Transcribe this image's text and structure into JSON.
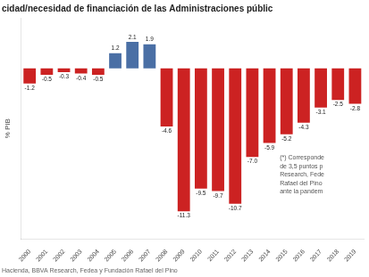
{
  "chart_data": {
    "type": "bar",
    "title": "cidad/necesidad de financiación de las Administraciones públic",
    "ylabel": "% PIB",
    "categories": [
      "2000",
      "2001",
      "2002",
      "2003",
      "2004",
      "2005",
      "2006",
      "2007",
      "2008",
      "2009",
      "2010",
      "2011",
      "2012",
      "2013",
      "2014",
      "2015",
      "2016",
      "2017",
      "2018",
      "2019"
    ],
    "values": [
      -1.2,
      -0.5,
      -0.3,
      -0.4,
      -0.5,
      1.2,
      2.1,
      1.9,
      -4.6,
      -11.3,
      -9.5,
      -9.7,
      -10.7,
      -7.0,
      -5.9,
      -5.2,
      -4.3,
      -3.1,
      -2.5,
      -2.8
    ],
    "value_labels": [
      "-1.2",
      "-0.5",
      "-0.3",
      "-0.4",
      "-0.5",
      "1.2",
      "2.1",
      "1.9",
      "-4.6",
      "-11.3",
      "-9.5",
      "-9.7",
      "-10.7",
      "-7.0",
      "-5.9",
      "-5.2",
      "-4.3",
      "-3.1",
      "-2.5",
      "-2.8"
    ],
    "colors": [
      "#cc2222",
      "#cc2222",
      "#cc2222",
      "#cc2222",
      "#cc2222",
      "#4a6fa5",
      "#4a6fa5",
      "#4a6fa5",
      "#cc2222",
      "#cc2222",
      "#cc2222",
      "#cc2222",
      "#cc2222",
      "#cc2222",
      "#cc2222",
      "#cc2222",
      "#cc2222",
      "#cc2222",
      "#cc2222",
      "#cc2222"
    ],
    "ylim": [
      -13.5,
      4.0
    ],
    "data_labels": true,
    "tick_labels": "x",
    "grid": false,
    "annotation": "(*) Corresponde\nde 3,5 puntos p\nResearch, Fede\nRafael del Pino\nante la pandem",
    "source": "Hacienda, BBVA Research, Fedea y Fundación Rafael del Pino"
  }
}
